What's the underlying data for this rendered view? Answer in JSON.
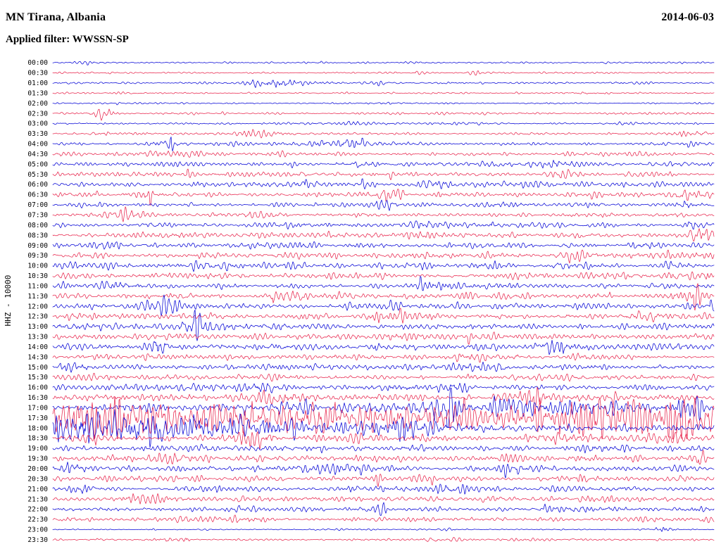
{
  "header": {
    "station_title": "MN Tirana, Albania",
    "date": "2014-06-03",
    "filter_label": "Applied filter: WWSSN-SP"
  },
  "axis": {
    "y_label": "HHZ - 10000"
  },
  "chart_data": {
    "type": "line",
    "subtype": "helicorder-seismogram",
    "station": "MN Tirana, Albania",
    "date": "2014-06-03",
    "filter": "WWSSN-SP",
    "channel_scale_label": "HHZ - 10000",
    "row_interval_minutes": 30,
    "rows_count": 48,
    "legend": "none",
    "grid": false,
    "colors": {
      "blue": "#0202d6",
      "red": "#e8244c"
    },
    "rows": [
      {
        "time": "00:00",
        "color": "blue",
        "amp": 0.7,
        "events": [
          [
            0.55,
            0.02,
            1.2
          ]
        ]
      },
      {
        "time": "00:30",
        "color": "red",
        "amp": 0.7,
        "events": [
          [
            0.62,
            0.02,
            1.0
          ]
        ]
      },
      {
        "time": "01:00",
        "color": "blue",
        "amp": 0.8,
        "events": [
          [
            0.33,
            0.025,
            5.0
          ],
          [
            0.39,
            0.02,
            2.5
          ],
          [
            0.5,
            0.015,
            1.8
          ]
        ]
      },
      {
        "time": "01:30",
        "color": "red",
        "amp": 0.7,
        "events": []
      },
      {
        "time": "02:00",
        "color": "blue",
        "amp": 0.7,
        "events": [
          [
            0.74,
            0.015,
            1.2
          ]
        ]
      },
      {
        "time": "02:30",
        "color": "red",
        "amp": 0.9,
        "events": [
          [
            0.077,
            0.012,
            7.0
          ]
        ]
      },
      {
        "time": "03:00",
        "color": "blue",
        "amp": 0.9,
        "events": [
          [
            0.45,
            0.02,
            1.2
          ]
        ]
      },
      {
        "time": "03:30",
        "color": "red",
        "amp": 1.0,
        "events": [
          [
            0.32,
            0.02,
            3.5
          ],
          [
            0.08,
            0.012,
            1.5
          ],
          [
            0.96,
            0.025,
            2.5
          ]
        ]
      },
      {
        "time": "04:00",
        "color": "blue",
        "amp": 1.6,
        "events": [
          [
            0.43,
            0.02,
            2.8
          ],
          [
            0.17,
            0.015,
            1.5
          ]
        ]
      },
      {
        "time": "04:30",
        "color": "red",
        "amp": 1.6,
        "events": [
          [
            0.19,
            0.015,
            1.8
          ],
          [
            0.9,
            0.02,
            1.5
          ]
        ]
      },
      {
        "time": "05:00",
        "color": "blue",
        "amp": 1.8,
        "events": [
          [
            0.46,
            0.02,
            1.6
          ],
          [
            0.75,
            0.02,
            1.3
          ]
        ]
      },
      {
        "time": "05:30",
        "color": "red",
        "amp": 1.8,
        "events": [
          [
            0.47,
            0.02,
            1.4
          ],
          [
            0.78,
            0.02,
            1.2
          ]
        ]
      },
      {
        "time": "06:00",
        "color": "blue",
        "amp": 2.0,
        "events": [
          [
            0.58,
            0.02,
            1.6
          ],
          [
            0.71,
            0.02,
            1.2
          ]
        ]
      },
      {
        "time": "06:30",
        "color": "red",
        "amp": 2.0,
        "events": [
          [
            0.15,
            0.015,
            1.4
          ],
          [
            0.5,
            0.025,
            1.4
          ],
          [
            0.96,
            0.02,
            1.3
          ]
        ]
      },
      {
        "time": "07:00",
        "color": "blue",
        "amp": 2.0,
        "events": [
          [
            0.5,
            0.015,
            1.6
          ],
          [
            0.95,
            0.015,
            1.6
          ]
        ]
      },
      {
        "time": "07:30",
        "color": "red",
        "amp": 2.0,
        "events": [
          [
            0.11,
            0.015,
            1.3
          ],
          [
            0.3,
            0.02,
            1.2
          ]
        ]
      },
      {
        "time": "08:00",
        "color": "blue",
        "amp": 2.2,
        "events": [
          [
            0.57,
            0.02,
            1.4
          ],
          [
            0.97,
            0.015,
            1.4
          ]
        ]
      },
      {
        "time": "08:30",
        "color": "red",
        "amp": 2.2,
        "events": [
          [
            0.57,
            0.015,
            1.4
          ],
          [
            0.985,
            0.02,
            2.2
          ]
        ]
      },
      {
        "time": "09:00",
        "color": "blue",
        "amp": 2.4,
        "events": [
          [
            0.89,
            0.025,
            1.6
          ]
        ]
      },
      {
        "time": "09:30",
        "color": "red",
        "amp": 2.4,
        "events": [
          [
            0.23,
            0.015,
            1.3
          ],
          [
            0.79,
            0.02,
            1.2
          ]
        ]
      },
      {
        "time": "10:00",
        "color": "blue",
        "amp": 2.5,
        "events": [
          [
            0.24,
            0.02,
            1.3
          ],
          [
            0.74,
            0.02,
            1.4
          ]
        ]
      },
      {
        "time": "10:30",
        "color": "red",
        "amp": 2.4,
        "events": [
          [
            0.97,
            0.025,
            1.8
          ]
        ]
      },
      {
        "time": "11:00",
        "color": "blue",
        "amp": 2.5,
        "events": [
          [
            0.11,
            0.02,
            1.3
          ],
          [
            0.6,
            0.02,
            1.2
          ]
        ]
      },
      {
        "time": "11:30",
        "color": "red",
        "amp": 2.5,
        "events": [
          [
            0.37,
            0.02,
            1.4
          ],
          [
            0.97,
            0.02,
            1.3
          ]
        ]
      },
      {
        "time": "12:00",
        "color": "blue",
        "amp": 2.5,
        "events": [
          [
            0.165,
            0.02,
            1.5
          ],
          [
            0.47,
            0.02,
            1.2
          ]
        ]
      },
      {
        "time": "12:30",
        "color": "red",
        "amp": 2.5,
        "events": [
          [
            0.495,
            0.02,
            1.4
          ],
          [
            0.9,
            0.02,
            1.2
          ]
        ]
      },
      {
        "time": "13:00",
        "color": "blue",
        "amp": 2.6,
        "events": [
          [
            0.23,
            0.03,
            1.7
          ],
          [
            0.335,
            0.015,
            2.0
          ]
        ]
      },
      {
        "time": "13:30",
        "color": "red",
        "amp": 2.5,
        "events": [
          [
            0.515,
            0.015,
            1.5
          ]
        ]
      },
      {
        "time": "14:00",
        "color": "blue",
        "amp": 2.5,
        "events": [
          [
            0.16,
            0.012,
            3.2
          ],
          [
            0.77,
            0.02,
            1.3
          ]
        ]
      },
      {
        "time": "14:30",
        "color": "red",
        "amp": 2.4,
        "events": [
          [
            0.62,
            0.02,
            1.3
          ]
        ]
      },
      {
        "time": "15:00",
        "color": "blue",
        "amp": 2.5,
        "events": [
          [
            0.032,
            0.015,
            1.7
          ],
          [
            0.655,
            0.02,
            1.4
          ]
        ]
      },
      {
        "time": "15:30",
        "color": "red",
        "amp": 2.5,
        "events": [
          [
            0.64,
            0.02,
            1.5
          ]
        ]
      },
      {
        "time": "16:00",
        "color": "blue",
        "amp": 2.7,
        "events": [
          [
            0.314,
            0.02,
            1.4
          ],
          [
            0.6,
            0.02,
            1.2
          ]
        ]
      },
      {
        "time": "16:30",
        "color": "red",
        "amp": 2.8,
        "events": [
          [
            0.335,
            0.025,
            1.9
          ],
          [
            0.7,
            0.025,
            1.6
          ]
        ]
      },
      {
        "time": "17:00",
        "color": "blue",
        "amp": 3.0,
        "events": [
          [
            0.35,
            0.03,
            2.5
          ],
          [
            0.47,
            0.025,
            2.0
          ],
          [
            0.59,
            0.03,
            2.2
          ],
          [
            0.69,
            0.025,
            1.8
          ],
          [
            0.79,
            0.03,
            2.5
          ],
          [
            0.87,
            0.02,
            2.0
          ],
          [
            0.96,
            0.03,
            2.5
          ]
        ]
      },
      {
        "time": "17:30",
        "color": "red",
        "amp": 5.5,
        "events": [
          [
            0.05,
            0.04,
            2.5
          ],
          [
            0.14,
            0.03,
            2.0
          ],
          [
            0.22,
            0.03,
            2.2
          ],
          [
            0.33,
            0.05,
            2.5
          ],
          [
            0.45,
            0.03,
            1.8
          ],
          [
            0.57,
            0.05,
            2.3
          ],
          [
            0.68,
            0.03,
            2.0
          ],
          [
            0.8,
            0.04,
            2.2
          ],
          [
            0.93,
            0.05,
            2.5
          ]
        ]
      },
      {
        "time": "18:00",
        "color": "blue",
        "amp": 4.2,
        "events": [
          [
            0.02,
            0.03,
            3.0
          ],
          [
            0.08,
            0.04,
            3.0
          ],
          [
            0.15,
            0.04,
            2.5
          ],
          [
            0.24,
            0.04,
            2.0
          ],
          [
            0.33,
            0.04,
            1.6
          ],
          [
            0.5,
            0.04,
            1.2
          ]
        ]
      },
      {
        "time": "18:30",
        "color": "red",
        "amp": 3.0,
        "events": [
          [
            0.3,
            0.03,
            1.5
          ],
          [
            0.75,
            0.03,
            1.3
          ]
        ]
      },
      {
        "time": "19:00",
        "color": "blue",
        "amp": 2.8,
        "events": [
          [
            0.815,
            0.025,
            1.5
          ]
        ]
      },
      {
        "time": "19:30",
        "color": "red",
        "amp": 2.6,
        "events": [
          [
            0.18,
            0.02,
            1.2
          ]
        ]
      },
      {
        "time": "20:00",
        "color": "blue",
        "amp": 2.7,
        "events": [
          [
            0.027,
            0.02,
            1.5
          ],
          [
            0.44,
            0.025,
            1.3
          ]
        ]
      },
      {
        "time": "20:30",
        "color": "red",
        "amp": 2.4,
        "events": [
          [
            0.55,
            0.02,
            1.1
          ]
        ]
      },
      {
        "time": "21:00",
        "color": "blue",
        "amp": 2.4,
        "events": [
          [
            0.048,
            0.015,
            1.5
          ],
          [
            0.61,
            0.025,
            1.5
          ]
        ]
      },
      {
        "time": "21:30",
        "color": "red",
        "amp": 2.2,
        "events": [
          [
            0.145,
            0.02,
            1.2
          ]
        ]
      },
      {
        "time": "22:00",
        "color": "blue",
        "amp": 2.2,
        "events": [
          [
            0.485,
            0.02,
            1.5
          ],
          [
            0.8,
            0.025,
            1.6
          ]
        ]
      },
      {
        "time": "22:30",
        "color": "red",
        "amp": 2.0,
        "events": [
          [
            0.293,
            0.015,
            1.4
          ]
        ]
      },
      {
        "time": "23:00",
        "color": "blue",
        "amp": 0.55,
        "events": [
          [
            0.926,
            0.008,
            6.0
          ],
          [
            0.6,
            0.01,
            2.0
          ]
        ]
      },
      {
        "time": "23:30",
        "color": "red",
        "amp": 1.1,
        "events": [
          [
            0.19,
            0.02,
            2.6
          ],
          [
            0.58,
            0.015,
            1.2
          ]
        ]
      }
    ]
  }
}
